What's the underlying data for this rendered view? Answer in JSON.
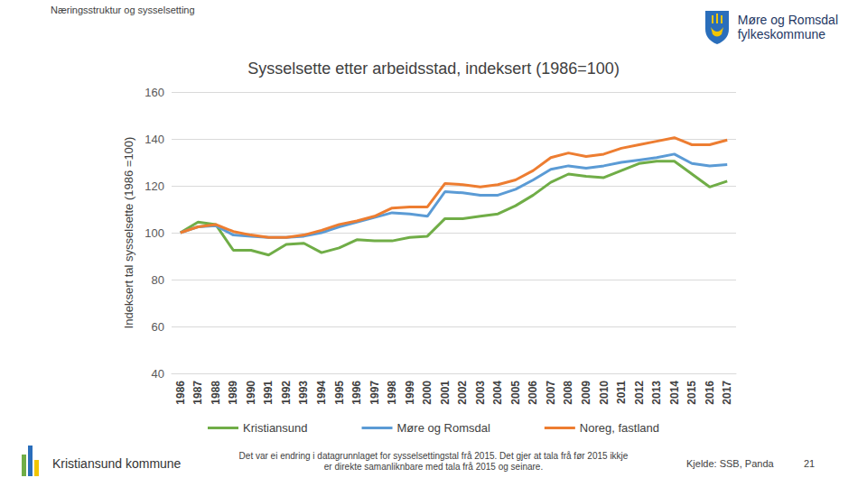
{
  "header": {
    "section": "Næringsstruktur og sysselsetting",
    "logo_text": [
      "Møre og Romsdal",
      "fylkeskommune"
    ]
  },
  "footer": {
    "organisation": "Kristiansund kommune",
    "note": [
      "Det var ei endring i datagrunnlaget for sysselsettingstal frå 2015. Det gjer at tala frå før 2015 ikkje",
      "er direkte samanliknbare med tala frå 2015 og seinare."
    ],
    "source": "Kjelde: SSB, Panda",
    "page": "21"
  },
  "chart_data": {
    "type": "line",
    "title": "Sysselsette etter arbeidsstad, indeksert (1986=100)",
    "y_label": "Indeksert tal sysselsette (1986 =100)",
    "categories": [
      "1986",
      "1987",
      "1988",
      "1989",
      "1990",
      "1991",
      "1992",
      "1993",
      "1994",
      "1995",
      "1996",
      "1997",
      "1998",
      "1999",
      "2000",
      "2001",
      "2002",
      "2003",
      "2004",
      "2005",
      "2006",
      "2007",
      "2008",
      "2009",
      "2010",
      "2011",
      "2012",
      "2013",
      "2014",
      "2015",
      "2016",
      "2017"
    ],
    "series": [
      {
        "name": "Kristiansund",
        "color": "#70ad47",
        "values": [
          100,
          104.5,
          103.5,
          92.5,
          92.5,
          90.5,
          95,
          95.5,
          91.5,
          93.5,
          97,
          96.5,
          96.5,
          98,
          98.5,
          106,
          106,
          107,
          108,
          111.5,
          116,
          121.5,
          125,
          124,
          123.5,
          126.5,
          129.5,
          130.5,
          130.5,
          125,
          119.5,
          122
        ]
      },
      {
        "name": "Møre og Romsdal",
        "color": "#5b9bd5",
        "values": [
          100,
          102.5,
          103,
          99,
          98.5,
          98,
          98,
          98.5,
          100,
          102.5,
          104.5,
          106.5,
          108.5,
          108,
          107,
          117.5,
          117,
          116,
          116,
          118.5,
          122.5,
          127,
          128.5,
          127.5,
          128.5,
          130,
          131,
          132,
          133.5,
          129.5,
          128.5,
          129
        ]
      },
      {
        "name": "Noreg, fastland",
        "color": "#ed7d31",
        "values": [
          100,
          102.5,
          103.5,
          100.5,
          99,
          98,
          98,
          99,
          101,
          103.5,
          105,
          107,
          110.5,
          111,
          111,
          121,
          120.5,
          119.5,
          120.5,
          122.5,
          126.5,
          132,
          134,
          132.5,
          133.5,
          136,
          137.5,
          139,
          140.5,
          137.5,
          137.5,
          139.5
        ]
      }
    ],
    "ylim": [
      40,
      160
    ],
    "yticks": [
      40,
      60,
      80,
      100,
      120,
      140,
      160
    ],
    "grid": true,
    "legend": "bottom"
  }
}
